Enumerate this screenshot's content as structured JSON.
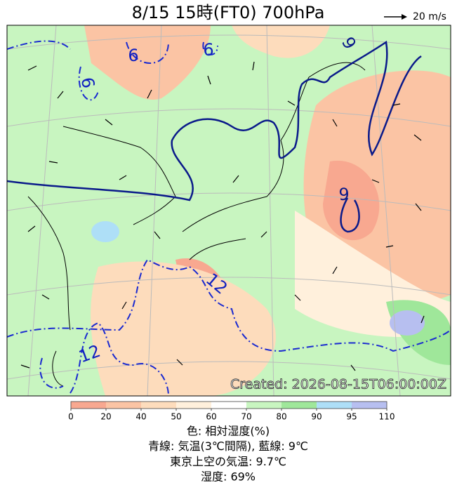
{
  "header": {
    "title": "8/15  15時(FT0)    700hPa",
    "wind_scale": "20 m/s"
  },
  "map": {
    "contour_labels": [
      "6",
      "6",
      "6",
      "9",
      "9",
      "12",
      "12"
    ],
    "created": "Created: 2026-08-15T06:00:00Z"
  },
  "colorbar": {
    "ticks": [
      0,
      20,
      40,
      50,
      60,
      70,
      80,
      90,
      95,
      110
    ],
    "colors": [
      "#f8a890",
      "#fbc4a4",
      "#fddcbc",
      "#fff0dc",
      "#ffffff",
      "#c8f5c0",
      "#9fe79a",
      "#aedff7",
      "#b7bff0"
    ]
  },
  "footer": {
    "lines": [
      "色: 相対湿度(%)",
      "青線: 気温(3℃間隔), 藍線: 9℃",
      "東京上空の気温: 9.7℃",
      "湿度: 69%"
    ]
  }
}
